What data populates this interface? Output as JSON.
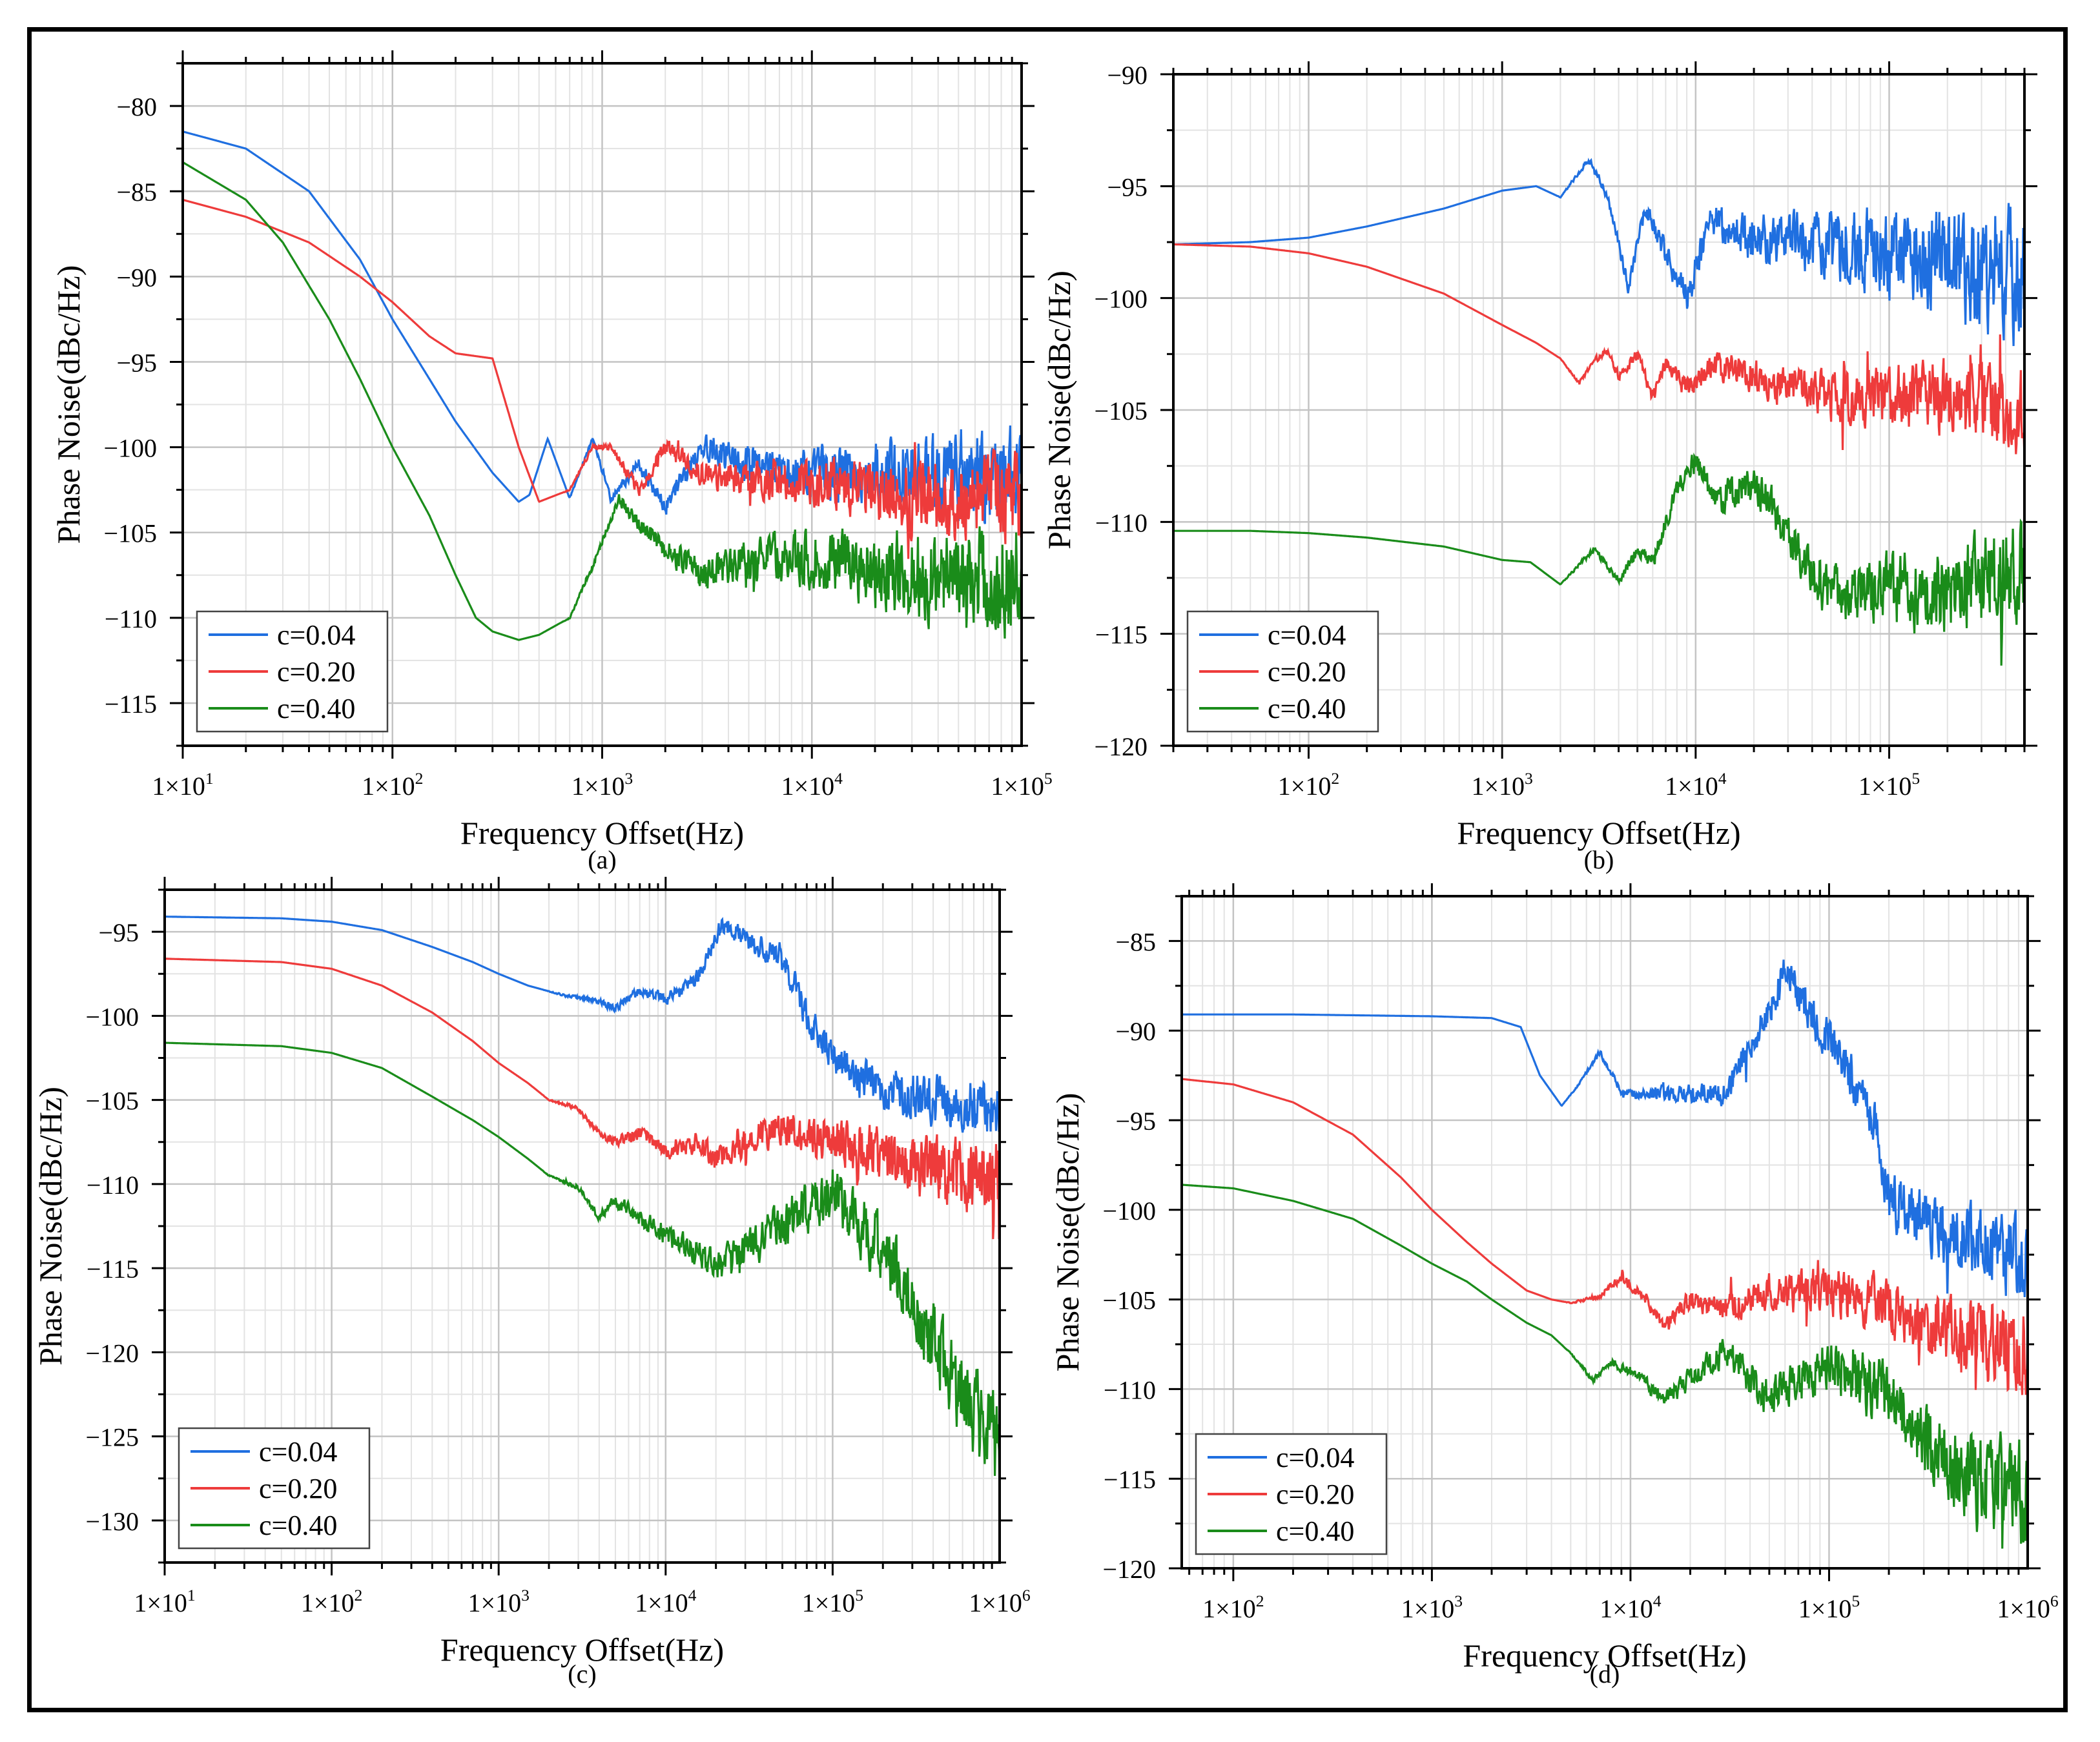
{
  "chart_data": [
    {
      "type": "line",
      "caption": "(a)",
      "xlabel": "Frequency Offset(Hz)",
      "ylabel": "Phase Noise(dBc/Hz)",
      "xscale": "log",
      "xlim": [
        10,
        100000
      ],
      "ylim": [
        -117.5,
        -77.5
      ],
      "xticks": [
        10,
        100,
        1000,
        10000,
        100000
      ],
      "xtick_labels": [
        "1×10^1",
        "1×10^2",
        "1×10^3",
        "1×10^4",
        "1×10^5"
      ],
      "yticks": [
        -115,
        -110,
        -105,
        -100,
        -95,
        -90,
        -85,
        -80
      ],
      "ytick_labels": [
        "−115",
        "−110",
        "−105",
        "−100",
        "−95",
        "−90",
        "−85",
        "−80"
      ],
      "grid": true,
      "legend_position": "bottom-left",
      "colors": {
        "c=0.04": "#1f6fe0",
        "c=0.20": "#ee3b3b",
        "c=0.40": "#1a8c1a"
      },
      "series": [
        {
          "name": "c=0.04",
          "x": [
            10,
            20,
            40,
            70,
            100,
            150,
            200,
            300,
            400,
            450,
            550,
            700,
            900,
            1100,
            1500,
            2000,
            3000,
            5000,
            10000,
            30000,
            100000
          ],
          "y": [
            -81.5,
            -82.5,
            -85,
            -89,
            -92.5,
            -96,
            -98.5,
            -101.5,
            -103.2,
            -102.8,
            -99.5,
            -103,
            -99.5,
            -103,
            -101,
            -103.5,
            -100,
            -101,
            -101.5,
            -101.5,
            -101.5
          ],
          "noise": 2.5
        },
        {
          "name": "c=0.20",
          "x": [
            10,
            20,
            40,
            70,
            100,
            150,
            200,
            300,
            400,
            500,
            700,
            900,
            1100,
            1500,
            2000,
            3000,
            5000,
            10000,
            30000,
            100000
          ],
          "y": [
            -85.5,
            -86.5,
            -88,
            -90,
            -91.5,
            -93.5,
            -94.5,
            -94.8,
            -100,
            -103.2,
            -102.5,
            -100,
            -100,
            -102.5,
            -100,
            -101.5,
            -102,
            -102,
            -103,
            -103
          ],
          "noise": 2.5
        },
        {
          "name": "c=0.40",
          "x": [
            10,
            20,
            30,
            50,
            70,
            100,
            150,
            200,
            250,
            300,
            400,
            500,
            700,
            900,
            1200,
            1500,
            2000,
            3000,
            5000,
            10000,
            30000,
            100000
          ],
          "y": [
            -83.3,
            -85.5,
            -88,
            -92.5,
            -96,
            -100,
            -104,
            -107.5,
            -110,
            -110.8,
            -111.3,
            -111,
            -110,
            -107,
            -103,
            -104.5,
            -106,
            -107.5,
            -106.5,
            -106.5,
            -107.5,
            -108
          ],
          "noise": 3
        }
      ]
    },
    {
      "type": "line",
      "caption": "(b)",
      "xlabel": "Frequency Offset(Hz)",
      "ylabel": "Phase Noise(dBc/Hz)",
      "xscale": "log",
      "xlim": [
        20,
        500000
      ],
      "ylim": [
        -120,
        -90
      ],
      "xticks": [
        100,
        1000,
        10000,
        100000
      ],
      "xtick_labels": [
        "1×10^2",
        "1×10^3",
        "1×10^4",
        "1×10^5"
      ],
      "yticks": [
        -120,
        -115,
        -110,
        -105,
        -100,
        -95,
        -90
      ],
      "ytick_labels": [
        "−120",
        "−115",
        "−110",
        "−105",
        "−100",
        "−95",
        "−90"
      ],
      "grid": true,
      "legend_position": "bottom-left",
      "colors": {
        "c=0.04": "#1f6fe0",
        "c=0.20": "#ee3b3b",
        "c=0.40": "#1a8c1a"
      },
      "series": [
        {
          "name": "c=0.04",
          "x": [
            20,
            50,
            100,
            200,
            500,
            1000,
            1500,
            2000,
            2800,
            3500,
            4500,
            5500,
            7000,
            9000,
            12000,
            20000,
            50000,
            100000,
            200000,
            500000
          ],
          "y": [
            -97.6,
            -97.5,
            -97.3,
            -96.8,
            -96,
            -95.2,
            -95,
            -95.5,
            -93.8,
            -95.5,
            -99.5,
            -96,
            -98,
            -100,
            -96.5,
            -97.5,
            -97.5,
            -98,
            -98.5,
            -99
          ],
          "noise": 2.5
        },
        {
          "name": "c=0.20",
          "x": [
            20,
            50,
            100,
            200,
            500,
            1000,
            1500,
            2000,
            2500,
            3000,
            3500,
            4000,
            5000,
            6000,
            7000,
            9000,
            12000,
            20000,
            50000,
            100000,
            200000,
            500000
          ],
          "y": [
            -97.6,
            -97.7,
            -98,
            -98.6,
            -99.8,
            -101.2,
            -102,
            -102.7,
            -103.8,
            -102.8,
            -102.3,
            -103.5,
            -102.5,
            -104.5,
            -103,
            -104,
            -103,
            -103.5,
            -104.5,
            -104.3,
            -104.5,
            -105
          ],
          "noise": 1.8
        },
        {
          "name": "c=0.40",
          "x": [
            20,
            50,
            100,
            200,
            500,
            1000,
            1400,
            2000,
            3000,
            4000,
            5000,
            6000,
            8000,
            10000,
            13000,
            20000,
            30000,
            40000,
            60000,
            100000,
            200000,
            500000
          ],
          "y": [
            -110.4,
            -110.4,
            -110.5,
            -110.7,
            -111.1,
            -111.7,
            -111.8,
            -112.8,
            -111.2,
            -112.6,
            -111.3,
            -111.8,
            -108.5,
            -107.3,
            -109,
            -108.2,
            -110.5,
            -112.5,
            -113.3,
            -113,
            -113.3,
            -112
          ],
          "noise": 2
        }
      ]
    },
    {
      "type": "line",
      "caption": "(c)",
      "xlabel": "Frequency Offset(Hz)",
      "ylabel": "Phase Noise(dBc/Hz)",
      "xscale": "log",
      "xlim": [
        10,
        1000000
      ],
      "ylim": [
        -132.5,
        -92.5
      ],
      "xticks": [
        10,
        100,
        1000,
        10000,
        100000,
        1000000
      ],
      "xtick_labels": [
        "1×10^1",
        "1×10^2",
        "1×10^3",
        "1×10^4",
        "1×10^5",
        "1×10^6"
      ],
      "yticks": [
        -130,
        -125,
        -120,
        -115,
        -110,
        -105,
        -100,
        -95
      ],
      "ytick_labels": [
        "−130",
        "−125",
        "−120",
        "−115",
        "−110",
        "−105",
        "−100",
        "−95"
      ],
      "grid": true,
      "legend_position": "bottom-left",
      "colors": {
        "c=0.04": "#1f6fe0",
        "c=0.20": "#ee3b3b",
        "c=0.40": "#1a8c1a"
      },
      "series": [
        {
          "name": "c=0.04",
          "x": [
            10,
            50,
            100,
            200,
            400,
            700,
            1000,
            1500,
            2500,
            3500,
            5000,
            7000,
            10000,
            15000,
            22000,
            30000,
            50000,
            70000,
            100000,
            200000,
            500000,
            1000000
          ],
          "y": [
            -94.1,
            -94.2,
            -94.4,
            -94.9,
            -95.9,
            -96.8,
            -97.5,
            -98.2,
            -98.8,
            -99,
            -99.5,
            -98.5,
            -99,
            -98,
            -94.5,
            -95.5,
            -96.5,
            -100,
            -102.5,
            -104.5,
            -105.2,
            -105.5
          ],
          "noise": 1.5
        },
        {
          "name": "c=0.20",
          "x": [
            10,
            50,
            100,
            200,
            400,
            700,
            1000,
            1500,
            2000,
            3000,
            4000,
            5000,
            7000,
            10000,
            15000,
            20000,
            30000,
            50000,
            100000,
            300000,
            1000000
          ],
          "y": [
            -96.6,
            -96.8,
            -97.2,
            -98.2,
            -99.8,
            -101.5,
            -102.8,
            -104,
            -105,
            -105.5,
            -107,
            -107.5,
            -107,
            -108,
            -107.5,
            -108.5,
            -107.5,
            -106.5,
            -107.5,
            -108.8,
            -109.5
          ],
          "noise": 2
        },
        {
          "name": "c=0.40",
          "x": [
            10,
            50,
            100,
            200,
            400,
            700,
            1000,
            1500,
            2000,
            3000,
            4000,
            5000,
            7000,
            10000,
            15000,
            20000,
            30000,
            50000,
            100000,
            200000,
            300000,
            500000,
            1000000
          ],
          "y": [
            -101.6,
            -101.8,
            -102.2,
            -103.1,
            -104.8,
            -106.2,
            -107.2,
            -108.5,
            -109.5,
            -110.2,
            -112,
            -111,
            -112,
            -113,
            -114,
            -115,
            -114,
            -112.5,
            -110.5,
            -114,
            -117,
            -121,
            -126
          ],
          "noise": 2.5
        }
      ]
    },
    {
      "type": "line",
      "caption": "(d)",
      "xlabel": "Frequency Offset(Hz)",
      "ylabel": "Phase Noise(dBc/Hz)",
      "xscale": "log",
      "xlim": [
        55,
        1000000
      ],
      "ylim": [
        -120,
        -82.5
      ],
      "xticks": [
        100,
        1000,
        10000,
        100000,
        1000000
      ],
      "xtick_labels": [
        "1×10^2",
        "1×10^3",
        "1×10^4",
        "1×10^5",
        "1×10^6"
      ],
      "yticks": [
        -120,
        -115,
        -110,
        -105,
        -100,
        -95,
        -90,
        -85
      ],
      "ytick_labels": [
        "−120",
        "−115",
        "−110",
        "−105",
        "−100",
        "−95",
        "−90",
        "−85"
      ],
      "grid": true,
      "legend_position": "bottom-left",
      "colors": {
        "c=0.04": "#1f6fe0",
        "c=0.20": "#ee3b3b",
        "c=0.40": "#1a8c1a"
      },
      "series": [
        {
          "name": "c=0.04",
          "x": [
            55,
            200,
            1000,
            2000,
            2800,
            3500,
            4500,
            5500,
            7000,
            9000,
            15000,
            30000,
            50000,
            60000,
            80000,
            120000,
            170000,
            200000,
            300000,
            500000,
            1000000
          ],
          "y": [
            -89.1,
            -89.1,
            -89.2,
            -89.3,
            -89.8,
            -92.5,
            -94.2,
            -93,
            -91.2,
            -93.5,
            -93.5,
            -93.5,
            -89,
            -86.5,
            -89,
            -92,
            -95,
            -99.5,
            -100.5,
            -101.8,
            -102.8
          ],
          "noise": 2
        },
        {
          "name": "c=0.20",
          "x": [
            55,
            100,
            200,
            400,
            700,
            1000,
            1500,
            2000,
            3000,
            4000,
            5000,
            7000,
            9000,
            12000,
            15000,
            20000,
            30000,
            50000,
            100000,
            200000,
            500000,
            1000000
          ],
          "y": [
            -92.7,
            -93,
            -94,
            -95.8,
            -98.2,
            -100,
            -101.8,
            -103,
            -104.5,
            -105,
            -105.2,
            -104.8,
            -103.8,
            -105,
            -106.5,
            -105,
            -105.5,
            -104.5,
            -104.5,
            -105.5,
            -107,
            -107.8
          ],
          "noise": 2.2
        },
        {
          "name": "c=0.40",
          "x": [
            55,
            100,
            200,
            400,
            700,
            1000,
            1500,
            2000,
            3000,
            4000,
            5000,
            6500,
            8000,
            10000,
            15000,
            20000,
            30000,
            50000,
            100000,
            200000,
            300000,
            500000,
            1000000
          ],
          "y": [
            -98.6,
            -98.8,
            -99.5,
            -100.5,
            -102,
            -103,
            -104,
            -105,
            -106.3,
            -107,
            -108,
            -109.5,
            -108.5,
            -109,
            -110.5,
            -109.5,
            -108,
            -110.5,
            -108.5,
            -110.5,
            -113,
            -115,
            -116
          ],
          "noise": 2.5
        }
      ]
    }
  ]
}
